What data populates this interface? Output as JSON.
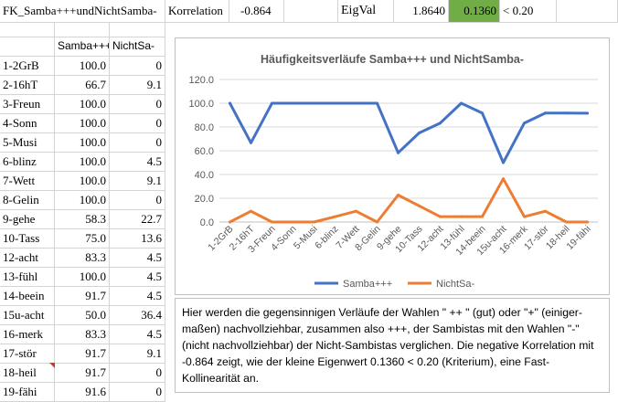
{
  "header": {
    "title": "FK_Samba+++undNichtSamba-",
    "korr_label": "Korrelation",
    "korr_value": "-0.864",
    "eigval_label": "EigVal",
    "eigval_1": "1.8640",
    "eigval_2": "0.1360",
    "criterion": "< 0.20",
    "colors": {
      "highlight": "#70ad47"
    }
  },
  "table": {
    "col1_header": "Samba+++",
    "col2_header": "NichtSa-",
    "rows": [
      {
        "label": "1-2GrB",
        "samba": "100.0",
        "nicht": "0"
      },
      {
        "label": "2-16hT",
        "samba": "66.7",
        "nicht": "9.1"
      },
      {
        "label": "3-Freun",
        "samba": "100.0",
        "nicht": "0"
      },
      {
        "label": "4-Sonn",
        "samba": "100.0",
        "nicht": "0"
      },
      {
        "label": "5-Musi",
        "samba": "100.0",
        "nicht": "0"
      },
      {
        "label": "6-blinz",
        "samba": "100.0",
        "nicht": "4.5"
      },
      {
        "label": "7-Wett",
        "samba": "100.0",
        "nicht": "9.1"
      },
      {
        "label": "8-Gelin",
        "samba": "100.0",
        "nicht": "0"
      },
      {
        "label": "9-gehe",
        "samba": "58.3",
        "nicht": "22.7"
      },
      {
        "label": "10-Tass",
        "samba": "75.0",
        "nicht": "13.6"
      },
      {
        "label": "12-acht",
        "samba": "83.3",
        "nicht": "4.5"
      },
      {
        "label": "13-fühl",
        "samba": "100.0",
        "nicht": "4.5"
      },
      {
        "label": "14-beein",
        "samba": "91.7",
        "nicht": "4.5"
      },
      {
        "label": "15u-acht",
        "samba": "50.0",
        "nicht": "36.4"
      },
      {
        "label": "16-merk",
        "samba": "83.3",
        "nicht": "4.5"
      },
      {
        "label": "17-stör",
        "samba": "91.7",
        "nicht": "9.1"
      },
      {
        "label": "18-heil",
        "samba": "91.7",
        "nicht": "0"
      },
      {
        "label": "19-fähi",
        "samba": "91.6",
        "nicht": "0"
      }
    ]
  },
  "chart_data": {
    "type": "line",
    "title": "Häufigkeitsverläufe Samba+++ und NichtSamba-",
    "categories": [
      "1-2GrB",
      "2-16hT",
      "3-Freun",
      "4-Sonn",
      "5-Musi",
      "6-blinz",
      "7-Wett",
      "8-Gelin",
      "9-gehe",
      "10-Tass",
      "12-acht",
      "13-fühl",
      "14-beein",
      "15u-acht",
      "16-merk",
      "17-stör",
      "18-heil",
      "19-fähi"
    ],
    "series": [
      {
        "name": "Samba+++",
        "color": "#4472c4",
        "values": [
          100.0,
          66.7,
          100.0,
          100.0,
          100.0,
          100.0,
          100.0,
          100.0,
          58.3,
          75.0,
          83.3,
          100.0,
          91.7,
          50.0,
          83.3,
          91.7,
          91.7,
          91.6
        ]
      },
      {
        "name": "NichtSa-",
        "color": "#ed7d31",
        "values": [
          0,
          9.1,
          0,
          0,
          0,
          4.5,
          9.1,
          0,
          22.7,
          13.6,
          4.5,
          4.5,
          4.5,
          36.4,
          4.5,
          9.1,
          0,
          0
        ]
      }
    ],
    "ylim": [
      0,
      120
    ],
    "yticks": [
      "0.0",
      "20.0",
      "40.0",
      "60.0",
      "80.0",
      "100.0",
      "120.0"
    ],
    "grid": true,
    "legend": "bottom"
  },
  "note": {
    "text": "Hier werden die gegensinnigen Verläufe der Wahlen \" ++ \" (gut)  oder \"+\" (einiger-maßen) nachvollziehbar, zusammen also +++, der Sambistas mit den Wahlen \"-\" (nicht nachvollziehbar) der Nicht-Sambistas verglichen. Die negative Korrelation mit -0.864 zeigt, wie der kleine Eigenwert 0.1360 < 0.20 (Kriterium), eine Fast-Kollinearität an."
  }
}
